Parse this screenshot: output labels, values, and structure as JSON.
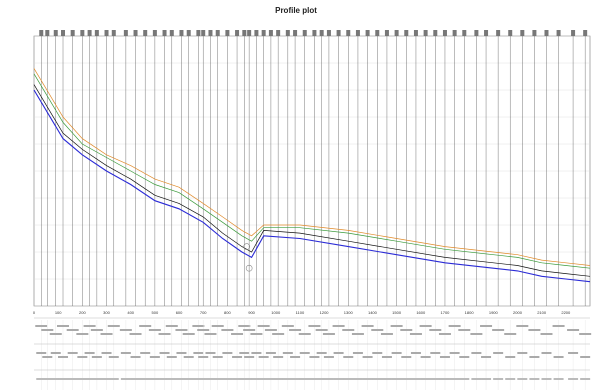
{
  "chart_data": {
    "type": "line",
    "title": "Profile plot",
    "subtitle": "",
    "xlabel": "",
    "ylabel": "",
    "xlim": [
      0,
      2300
    ],
    "ylim": [
      0,
      100
    ],
    "x_ticks": [
      "0",
      "100",
      "200",
      "300",
      "400",
      "500",
      "600",
      "700",
      "800",
      "900",
      "1000",
      "1100",
      "1200",
      "1300",
      "1400",
      "1500",
      "1600",
      "1700",
      "1800",
      "1900",
      "2000",
      "2100",
      "2200"
    ],
    "grid": true,
    "legend": "none",
    "colors": {
      "black": "#111111",
      "blue": "#2b2bd6",
      "orange": "#e08a2a",
      "green": "#3a9a3a",
      "grid": "#d8d8d8",
      "station": "#555555"
    },
    "series": [
      {
        "values": [
          [
            0,
            82
          ],
          [
            60,
            73
          ],
          [
            120,
            64
          ],
          [
            200,
            58
          ],
          [
            300,
            52
          ],
          [
            400,
            47
          ],
          [
            500,
            41
          ],
          [
            600,
            38
          ],
          [
            700,
            33
          ],
          [
            780,
            27
          ],
          [
            860,
            22
          ],
          [
            900,
            20
          ],
          [
            950,
            28
          ],
          [
            1100,
            27
          ],
          [
            1300,
            24
          ],
          [
            1500,
            21
          ],
          [
            1700,
            18
          ],
          [
            1900,
            16
          ],
          [
            2000,
            15
          ],
          [
            2100,
            13
          ],
          [
            2200,
            12
          ],
          [
            2300,
            11
          ]
        ]
      },
      {
        "values": [
          [
            0,
            80
          ],
          [
            60,
            71
          ],
          [
            120,
            62
          ],
          [
            200,
            56
          ],
          [
            300,
            50
          ],
          [
            400,
            45
          ],
          [
            500,
            39
          ],
          [
            600,
            36
          ],
          [
            700,
            31
          ],
          [
            780,
            25
          ],
          [
            860,
            20
          ],
          [
            900,
            18
          ],
          [
            950,
            26
          ],
          [
            1100,
            25
          ],
          [
            1300,
            22
          ],
          [
            1500,
            19
          ],
          [
            1700,
            16
          ],
          [
            1900,
            14
          ],
          [
            2000,
            13
          ],
          [
            2100,
            11
          ],
          [
            2200,
            10
          ],
          [
            2300,
            9
          ]
        ]
      },
      {
        "values": [
          [
            0,
            88
          ],
          [
            60,
            79
          ],
          [
            120,
            70
          ],
          [
            200,
            62
          ],
          [
            300,
            56
          ],
          [
            400,
            52
          ],
          [
            500,
            47
          ],
          [
            600,
            44
          ],
          [
            700,
            38
          ],
          [
            780,
            33
          ],
          [
            860,
            28
          ],
          [
            900,
            26
          ],
          [
            950,
            30
          ],
          [
            1100,
            30
          ],
          [
            1300,
            28
          ],
          [
            1500,
            25
          ],
          [
            1700,
            22
          ],
          [
            1900,
            20
          ],
          [
            2000,
            19
          ],
          [
            2100,
            17
          ],
          [
            2200,
            16
          ],
          [
            2300,
            15
          ]
        ]
      },
      {
        "values": [
          [
            0,
            86
          ],
          [
            60,
            77
          ],
          [
            120,
            68
          ],
          [
            200,
            60
          ],
          [
            300,
            55
          ],
          [
            400,
            50
          ],
          [
            500,
            45
          ],
          [
            600,
            42
          ],
          [
            700,
            36
          ],
          [
            780,
            31
          ],
          [
            860,
            26
          ],
          [
            900,
            24
          ],
          [
            950,
            29
          ],
          [
            1100,
            29
          ],
          [
            1300,
            27
          ],
          [
            1500,
            24
          ],
          [
            1700,
            21
          ],
          [
            1900,
            19
          ],
          [
            2000,
            18
          ],
          [
            2100,
            16
          ],
          [
            2200,
            15
          ],
          [
            2300,
            14
          ]
        ]
      }
    ],
    "stations": [
      30,
      55,
      90,
      120,
      160,
      200,
      230,
      260,
      300,
      330,
      380,
      420,
      460,
      500,
      540,
      570,
      610,
      640,
      680,
      700,
      730,
      760,
      800,
      840,
      870,
      890,
      920,
      950,
      980,
      1010,
      1050,
      1080,
      1120,
      1160,
      1190,
      1220,
      1260,
      1300,
      1340,
      1380,
      1420,
      1460,
      1500,
      1540,
      1580,
      1620,
      1660,
      1700,
      1740,
      1780,
      1830,
      1870,
      1920,
      1970,
      2020,
      2070,
      2120,
      2170,
      2230,
      2280
    ]
  }
}
